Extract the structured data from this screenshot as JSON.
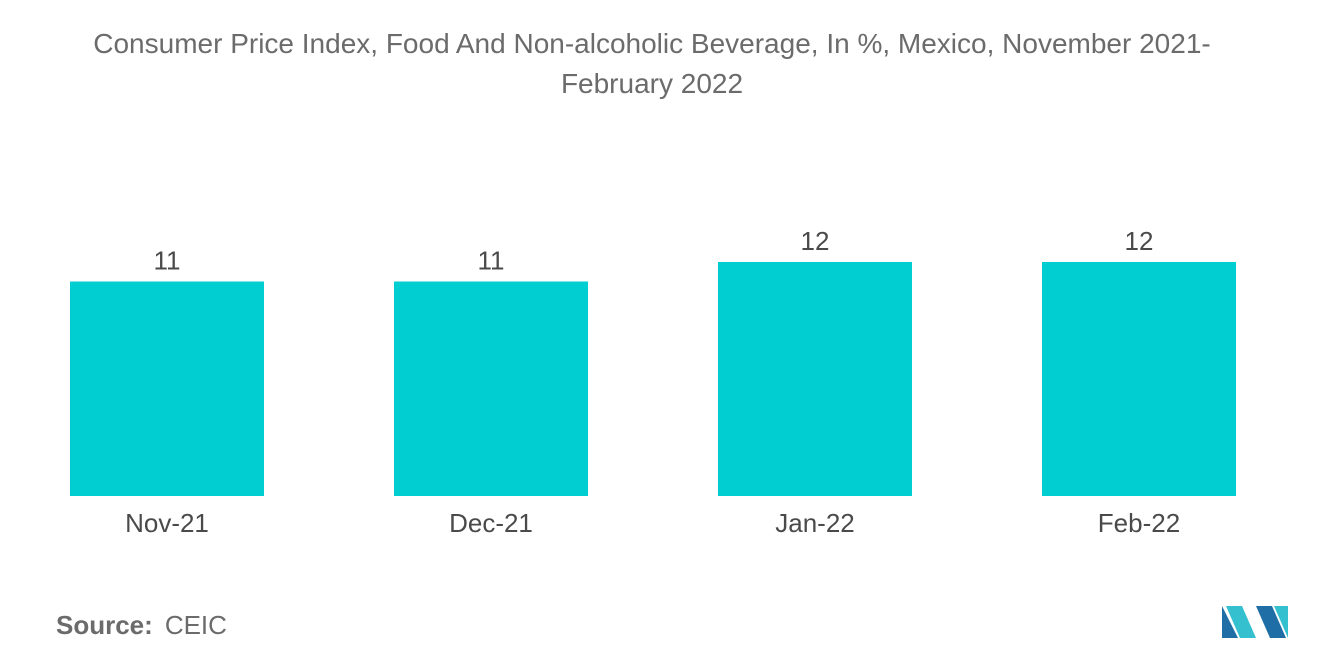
{
  "chart_data": {
    "type": "bar",
    "title": "Consumer Price Index, Food And Non-alcoholic Beverage, In %, Mexico, November 2021-February 2022",
    "categories": [
      "Nov-21",
      "Dec-21",
      "Jan-22",
      "Feb-22"
    ],
    "values": [
      11,
      11,
      12,
      12
    ],
    "data_labels": [
      "11",
      "11",
      "12",
      "12"
    ],
    "xlabel": "",
    "ylabel": "",
    "ylim": [
      0,
      12
    ],
    "grid": false,
    "legend": "none",
    "bar_color": "#00CED1"
  },
  "source": {
    "label": "Source:",
    "value": "CEIC"
  },
  "logo": {
    "icon": "mordor-intelligence-logo-icon",
    "colors": [
      "#1F6FA6",
      "#35C0CF"
    ]
  }
}
